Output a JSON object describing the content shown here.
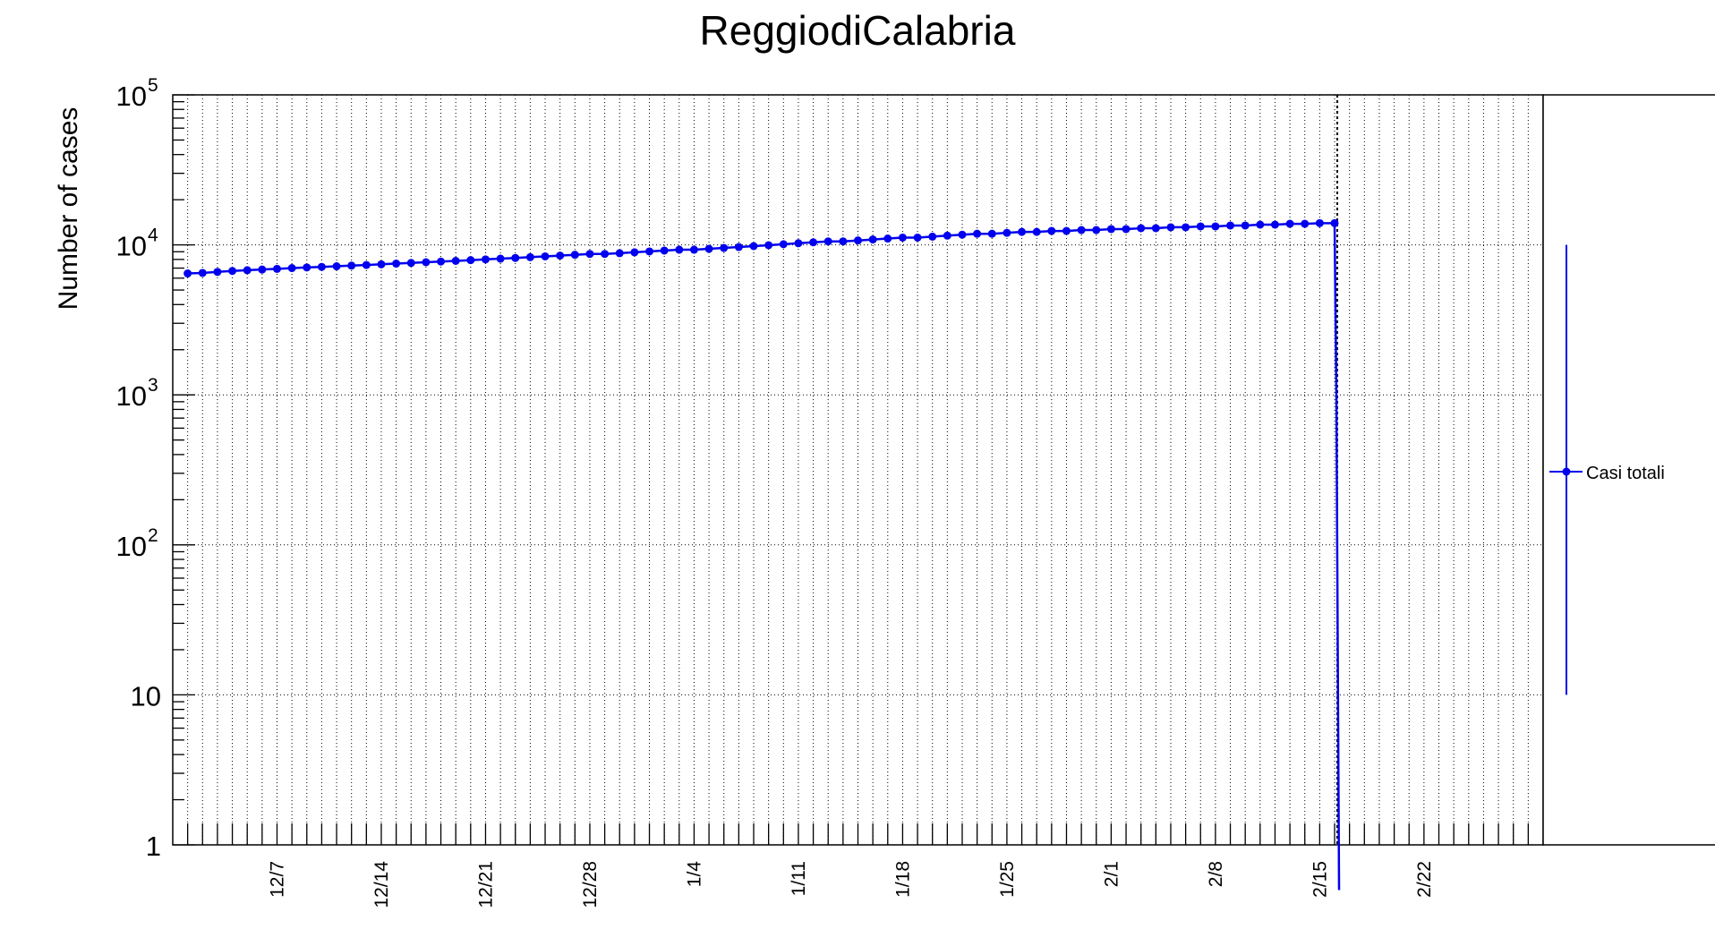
{
  "chart_data": {
    "type": "line",
    "title": "ReggiodiCalabria",
    "xlabel": "",
    "ylabel": "Number of cases",
    "y_scale": "log",
    "ylim": [
      1,
      100000
    ],
    "xlim": [
      "2020-11-30",
      "2021-03-02"
    ],
    "grid": true,
    "legend_placement": "right",
    "x_tick_labels": [
      "12/7",
      "12/14",
      "12/21",
      "12/28",
      "1/4",
      "1/11",
      "1/18",
      "1/25",
      "2/1",
      "2/8",
      "2/15",
      "2/22"
    ],
    "y_tick_labels": [
      {
        "base": "1",
        "exp": ""
      },
      {
        "base": "10",
        "exp": ""
      },
      {
        "base": "10",
        "exp": "2"
      },
      {
        "base": "10",
        "exp": "3"
      },
      {
        "base": "10",
        "exp": "4"
      },
      {
        "base": "10",
        "exp": "5"
      }
    ],
    "marker_line": {
      "x": "2021-02-16"
    },
    "series": [
      {
        "name": "Casi totali",
        "color": "#0000ee",
        "start_date": "2020-12-01",
        "values": [
          6450,
          6500,
          6600,
          6700,
          6780,
          6850,
          6920,
          7000,
          7070,
          7130,
          7200,
          7270,
          7340,
          7420,
          7500,
          7580,
          7660,
          7740,
          7820,
          7910,
          8000,
          8090,
          8180,
          8280,
          8380,
          8480,
          8590,
          8700,
          8700,
          8800,
          8920,
          9040,
          9160,
          9280,
          9280,
          9410,
          9540,
          9670,
          9810,
          9950,
          10100,
          10250,
          10400,
          10550,
          10550,
          10700,
          10860,
          11020,
          11180,
          11180,
          11350,
          11520,
          11690,
          11860,
          11860,
          12030,
          12200,
          12200,
          12380,
          12380,
          12560,
          12560,
          12740,
          12740,
          12920,
          12920,
          13100,
          13100,
          13280,
          13280,
          13460,
          13460,
          13640,
          13640,
          13820,
          13820,
          13950,
          13950
        ],
        "dropoff": {
          "x": "2021-02-16",
          "y": 0.5
        }
      }
    ]
  },
  "legend": {
    "entries": [
      {
        "label": "Casi totali",
        "color": "#0000ee"
      }
    ]
  }
}
